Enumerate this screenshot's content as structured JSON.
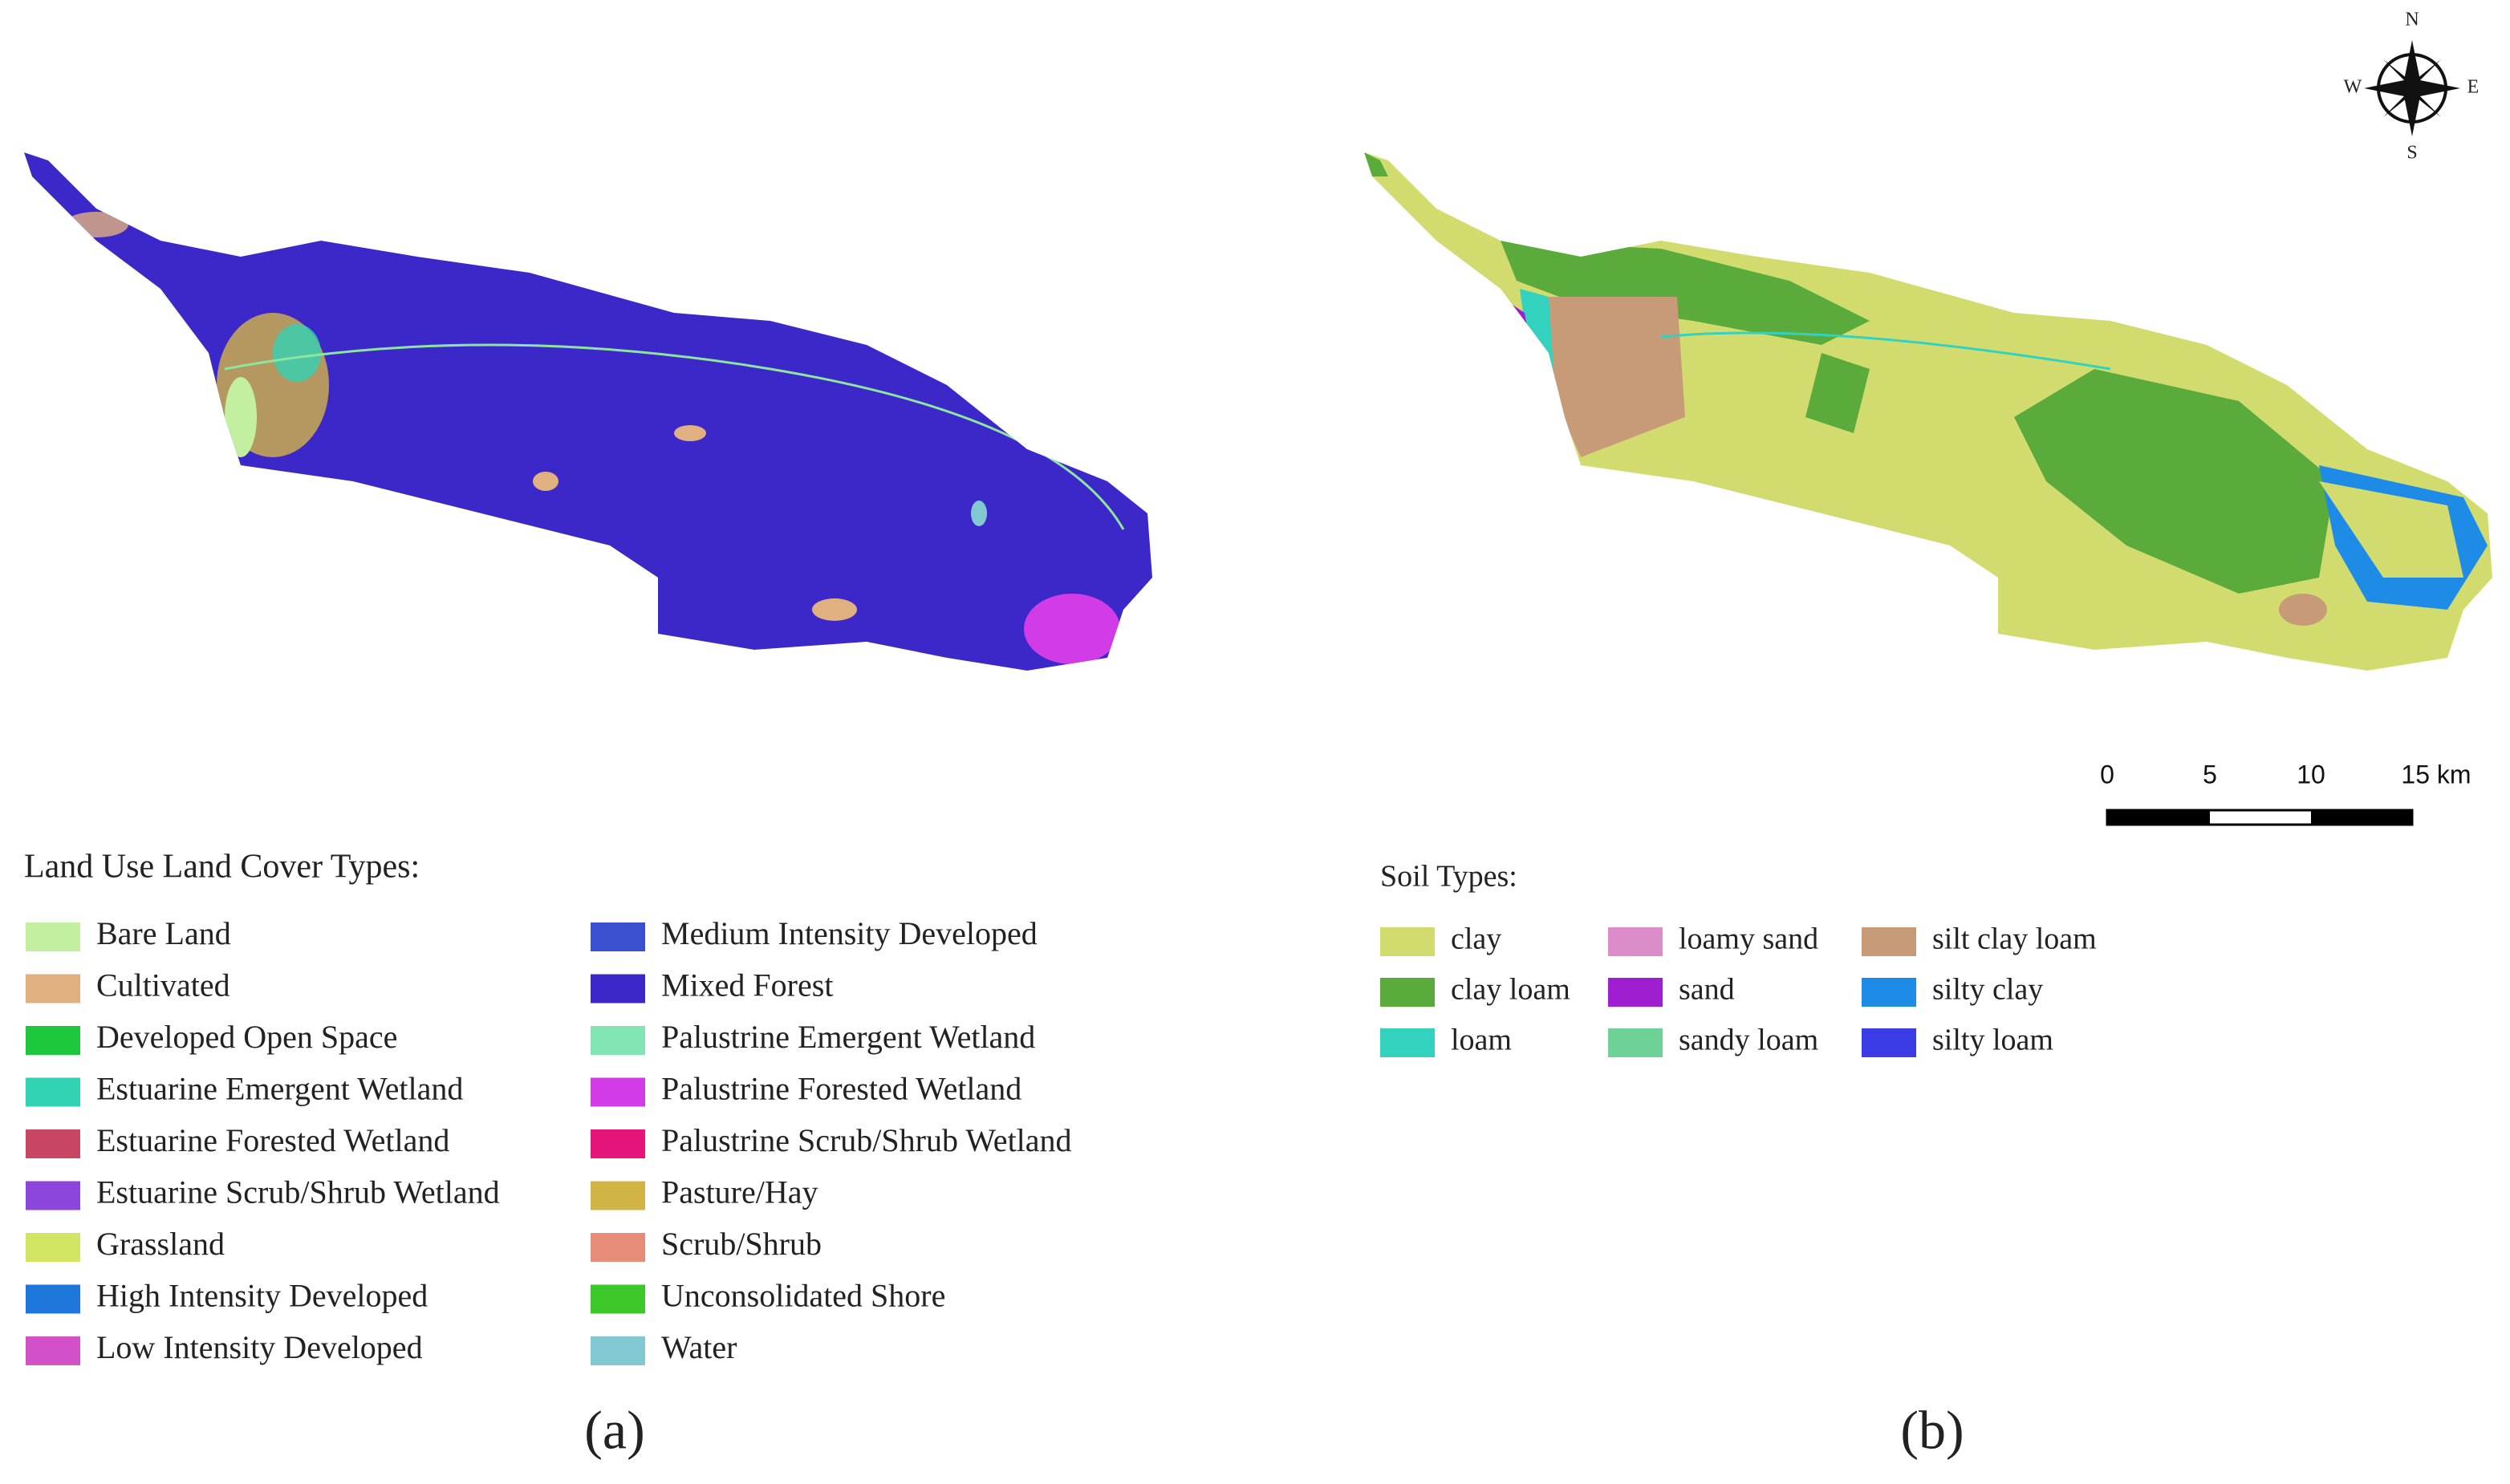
{
  "panel_a": {
    "label": "(a)",
    "legend": {
      "title": "Land Use Land Cover Types:",
      "items": [
        {
          "name": "Bare Land",
          "color": "#c2f0a0"
        },
        {
          "name": "Cultivated",
          "color": "#e0b080"
        },
        {
          "name": "Developed Open Space",
          "color": "#1ec83c"
        },
        {
          "name": "Estuarine Emergent Wetland",
          "color": "#32d2b4"
        },
        {
          "name": "Estuarine Forested Wetland",
          "color": "#c84664"
        },
        {
          "name": "Estuarine Scrub/Shrub Wetland",
          "color": "#8c46dc"
        },
        {
          "name": "Grassland",
          "color": "#d2e664"
        },
        {
          "name": "High Intensity Developed",
          "color": "#1e78dc"
        },
        {
          "name": "Low Intensity Developed",
          "color": "#d250c8"
        },
        {
          "name": "Medium Intensity Developed",
          "color": "#3c50d2"
        },
        {
          "name": "Mixed Forest",
          "color": "#3c28c8"
        },
        {
          "name": "Palustrine Emergent Wetland",
          "color": "#82e6b4"
        },
        {
          "name": "Palustrine Forested Wetland",
          "color": "#d23ce6"
        },
        {
          "name": "Palustrine Scrub/Shrub Wetland",
          "color": "#e6147a"
        },
        {
          "name": "Pasture/Hay",
          "color": "#d2b446"
        },
        {
          "name": "Scrub/Shrub",
          "color": "#e68c78"
        },
        {
          "name": "Unconsolidated Shore",
          "color": "#3cc828"
        },
        {
          "name": "Water",
          "color": "#82c8d2"
        }
      ]
    }
  },
  "panel_b": {
    "label": "(b)",
    "legend": {
      "title": "Soil Types:",
      "items": [
        {
          "name": "clay",
          "color": "#d2dc6e"
        },
        {
          "name": "clay loam",
          "color": "#5aaa3c"
        },
        {
          "name": "loam",
          "color": "#32d2be"
        },
        {
          "name": "loamy sand",
          "color": "#dc8cc8"
        },
        {
          "name": "sand",
          "color": "#a01ed2"
        },
        {
          "name": "sandy loam",
          "color": "#6ed296"
        },
        {
          "name": "silt clay loam",
          "color": "#c89b78"
        },
        {
          "name": "silty clay",
          "color": "#1e8ce6"
        },
        {
          "name": "silty loam",
          "color": "#3c3ce6"
        }
      ]
    }
  },
  "compass": {
    "n": "N",
    "e": "E",
    "s": "S",
    "w": "W"
  },
  "scale_bar": {
    "labels": [
      "0",
      "5",
      "10",
      "15 km"
    ]
  }
}
